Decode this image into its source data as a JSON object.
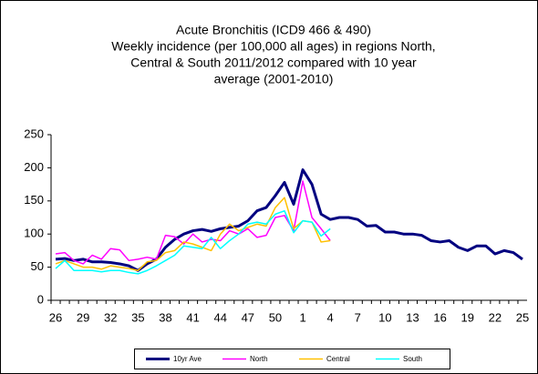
{
  "chart_data": {
    "type": "line",
    "title_lines": [
      "Acute Bronchitis  (ICD9 466 & 490)",
      "Weekly incidence  (per 100,000  all ages)  in regions  North,",
      "Central & South  2011/2012  compared with 10 year",
      "average  (2001-2010)"
    ],
    "categories": [
      "26",
      null,
      null,
      "29",
      null,
      null,
      "32",
      null,
      null,
      "35",
      null,
      null,
      "38",
      null,
      null,
      "41",
      null,
      null,
      "44",
      null,
      null,
      "47",
      null,
      null,
      "50",
      null,
      null,
      "1",
      null,
      null,
      "4",
      null,
      null,
      "7",
      null,
      null,
      "10",
      null,
      null,
      "13",
      null,
      null,
      "16",
      null,
      null,
      "19",
      null,
      null,
      "22",
      null,
      null,
      "25"
    ],
    "ylim": [
      0,
      250
    ],
    "yticks": [
      0,
      50,
      100,
      150,
      200,
      250
    ],
    "series": [
      {
        "name": "10yr Ave",
        "color": "#000080",
        "width": 3,
        "values": [
          62,
          63,
          60,
          62,
          58,
          58,
          57,
          55,
          52,
          45,
          55,
          62,
          80,
          92,
          100,
          105,
          107,
          104,
          108,
          110,
          112,
          120,
          135,
          140,
          158,
          178,
          145,
          197,
          175,
          130,
          122,
          125,
          125,
          122,
          112,
          113,
          103,
          103,
          100,
          100,
          98,
          90,
          88,
          90,
          80,
          75,
          82,
          82,
          70,
          75,
          72,
          62
        ]
      },
      {
        "name": "North",
        "color": "#ff00ff",
        "width": 1.5,
        "values": [
          70,
          72,
          60,
          55,
          68,
          62,
          78,
          76,
          60,
          62,
          65,
          62,
          98,
          96,
          85,
          100,
          88,
          92,
          90,
          105,
          100,
          108,
          95,
          98,
          125,
          128,
          105,
          180,
          125,
          108,
          90,
          null,
          null,
          null,
          null,
          null,
          null,
          null,
          null,
          null,
          null,
          null,
          null,
          null,
          null,
          null,
          null,
          null,
          null,
          null,
          null,
          null
        ]
      },
      {
        "name": "Central",
        "color": "#ffc000",
        "width": 1.5,
        "values": [
          55,
          60,
          55,
          50,
          50,
          47,
          52,
          50,
          48,
          45,
          58,
          60,
          72,
          75,
          88,
          85,
          80,
          75,
          100,
          115,
          105,
          110,
          115,
          112,
          140,
          155,
          108,
          120,
          118,
          88,
          90,
          null,
          null,
          null,
          null,
          null,
          null,
          null,
          null,
          null,
          null,
          null,
          null,
          null,
          null,
          null,
          null,
          null,
          null,
          null,
          null,
          null
        ]
      },
      {
        "name": "South",
        "color": "#00ffff",
        "width": 1.5,
        "values": [
          48,
          60,
          45,
          45,
          45,
          43,
          45,
          45,
          42,
          40,
          45,
          52,
          60,
          68,
          82,
          80,
          78,
          95,
          78,
          90,
          100,
          115,
          118,
          115,
          130,
          135,
          102,
          120,
          118,
          97,
          108,
          null,
          null,
          null,
          null,
          null,
          null,
          null,
          null,
          null,
          null,
          null,
          null,
          null,
          null,
          null,
          null,
          null,
          null,
          null,
          null,
          null
        ]
      }
    ]
  }
}
